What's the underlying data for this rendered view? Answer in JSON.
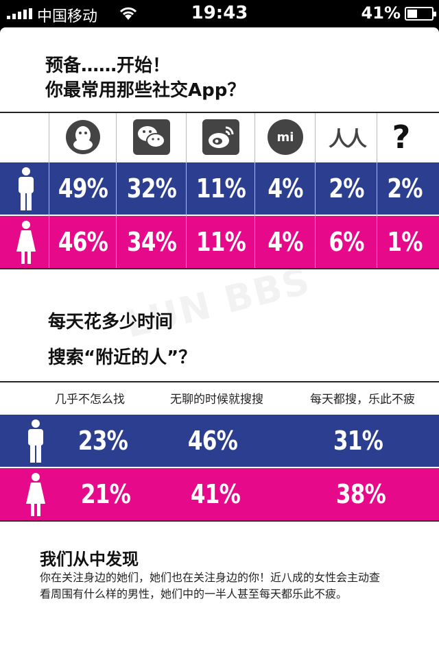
{
  "status_bar": {
    "carrier": "中国移动",
    "time": "19:43",
    "battery": "41%",
    "battery_level": 0.41
  },
  "section1": {
    "title_line1": "预备……开始！",
    "title_line2": "你最常用那些社交App？",
    "apps": [
      {
        "icon": "qq-icon"
      },
      {
        "icon": "wechat-icon"
      },
      {
        "icon": "weibo-icon"
      },
      {
        "icon": "mitalk-icon",
        "glyph": "mi"
      },
      {
        "icon": "renren-icon",
        "glyph": "人人"
      },
      {
        "icon": "question-icon",
        "glyph": "?"
      }
    ],
    "male": [
      "49%",
      "32%",
      "11%",
      "4%",
      "2%",
      "2%"
    ],
    "female": [
      "46%",
      "34%",
      "11%",
      "4%",
      "6%",
      "1%"
    ]
  },
  "section2": {
    "title_line1": "每天花多少时间",
    "title_line2": "搜索“附近的人”？",
    "columns": [
      "几乎不怎么找",
      "无聊的时候就搜搜",
      "每天都搜，乐此不疲"
    ],
    "male": [
      "23%",
      "46%",
      "31%"
    ],
    "female": [
      "21%",
      "41%",
      "38%"
    ]
  },
  "findings": {
    "title": "我们从中发现",
    "body": "你在关注身边的她们，她们也在关注身边的你！近八成的女性会主动查看周围有什么样的男性，她们中的一半人甚至每天都乐此不疲。"
  },
  "watermark": "LUN BBS",
  "colors": {
    "male": "#2c3e8f",
    "female": "#e6098a"
  }
}
